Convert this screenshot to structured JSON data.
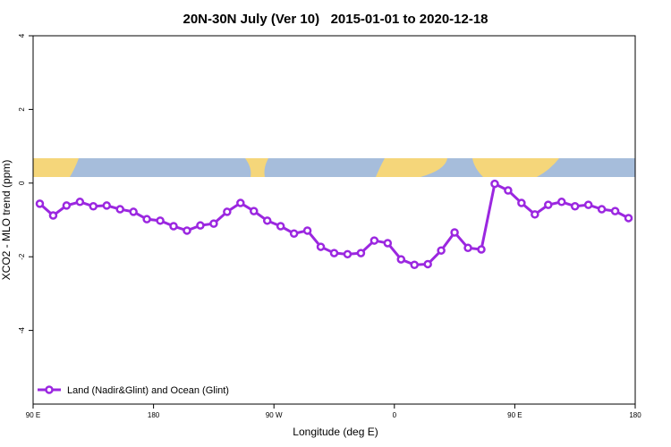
{
  "chart_data": {
    "type": "line",
    "title": "20N-30N July (Ver 10)   2015-01-01 to 2020-12-18",
    "x_label": "Longitude (deg E)",
    "y_label": "XCO2 - MLO trend (ppm)",
    "xlim": [
      90,
      540
    ],
    "xticks": [
      {
        "value": 90,
        "label": "90 E"
      },
      {
        "value": 180,
        "label": "180"
      },
      {
        "value": 270,
        "label": "90 W"
      },
      {
        "value": 360,
        "label": "0"
      },
      {
        "value": 450,
        "label": "90 E"
      },
      {
        "value": 540,
        "label": "180"
      }
    ],
    "ylim": [
      -6,
      4
    ],
    "yticks": [
      4,
      2,
      0,
      -2,
      -4
    ],
    "legend": "bottom-left",
    "x": [
      95,
      105,
      115,
      125,
      135,
      145,
      155,
      165,
      175,
      185,
      195,
      205,
      215,
      225,
      235,
      245,
      255,
      265,
      275,
      285,
      295,
      305,
      315,
      325,
      335,
      345,
      355,
      365,
      375,
      385,
      395,
      405,
      415,
      425,
      435,
      445,
      455,
      465,
      475,
      485,
      495,
      505,
      515,
      525,
      535
    ],
    "series": [
      {
        "name": "Land (Nadir&Glint) and Ocean (Glint)",
        "color": "#9b27e0",
        "values": [
          -0.56,
          -0.88,
          -0.61,
          -0.51,
          -0.63,
          -0.61,
          -0.71,
          -0.78,
          -0.98,
          -1.02,
          -1.17,
          -1.29,
          -1.15,
          -1.1,
          -0.78,
          -0.54,
          -0.76,
          -1.02,
          -1.17,
          -1.37,
          -1.29,
          -1.73,
          -1.9,
          -1.93,
          -1.9,
          -1.56,
          -1.63,
          -2.07,
          -2.22,
          -2.2,
          -1.83,
          -1.34,
          -1.76,
          -1.8,
          -0.02,
          -0.2,
          -0.54,
          -0.85,
          -0.59,
          -0.51,
          -0.63,
          -0.59,
          -0.71,
          -0.76,
          -0.95
        ]
      }
    ]
  }
}
